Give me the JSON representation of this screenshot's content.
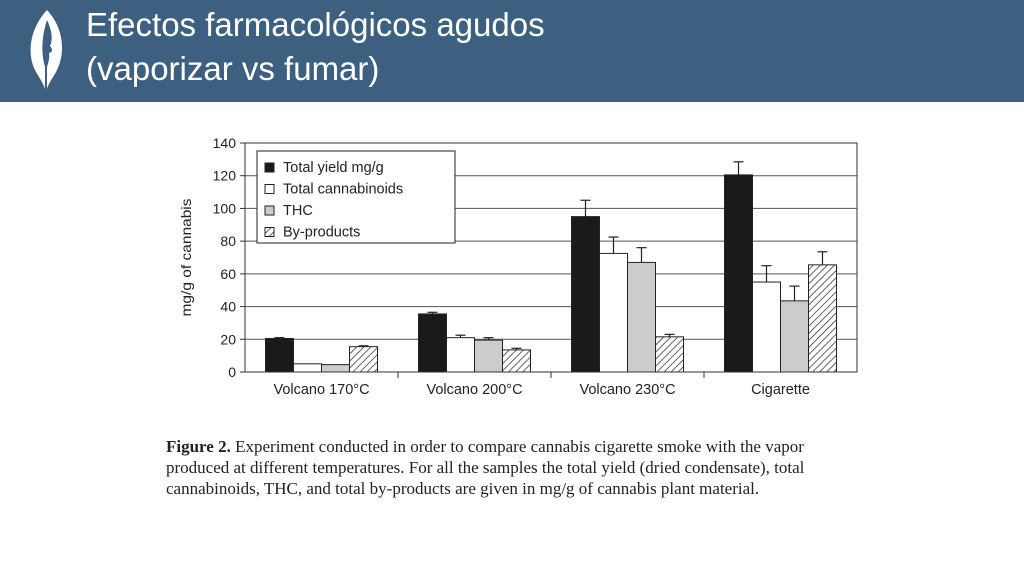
{
  "slide": {
    "title_line1": "Efectos farmacológicos agudos",
    "title_line2": "(vaporizar vs fumar)",
    "logo_icon": "leaf-profile-icon"
  },
  "caption": {
    "lead": "Figure 2.",
    "text": "Experiment conducted in order to compare cannabis cigarette smoke with the vapor produced at different temperatures. For all the samples the total yield (dried condensate), total cannabinoids, THC, and total by-products are given in mg/g of cannabis plant material."
  },
  "colors": {
    "header_bg": "#3d5f80",
    "total_yield": "#1a1a1a",
    "total_cannabinoids": "#ffffff",
    "thc": "#cccccc",
    "by_products": "hatched"
  },
  "chart_data": {
    "type": "bar",
    "title": "",
    "xlabel": "",
    "ylabel": "mg/g of cannabis",
    "ylim": [
      0,
      140
    ],
    "yticks": [
      0,
      20,
      40,
      60,
      80,
      100,
      120,
      140
    ],
    "grid": true,
    "legend_position": "top-left",
    "categories": [
      "Volcano 170°C",
      "Volcano 200°C",
      "Volcano 230°C",
      "Cigarette"
    ],
    "series": [
      {
        "name": "Total yield mg/g",
        "fill": "#1a1a1a",
        "values": [
          20.5,
          35.5,
          95,
          120.5
        ],
        "errors": [
          0.5,
          1,
          10,
          8
        ]
      },
      {
        "name": "Total cannabinoids",
        "fill": "#ffffff",
        "values": [
          5,
          21,
          72.5,
          55
        ],
        "errors": [
          0,
          1.5,
          10,
          10
        ]
      },
      {
        "name": "THC",
        "fill": "#cccccc",
        "values": [
          4.5,
          19.5,
          67,
          43.5
        ],
        "errors": [
          0,
          1.5,
          9,
          9
        ]
      },
      {
        "name": "By-products",
        "fill": "hatch",
        "values": [
          15.5,
          13.5,
          21.5,
          65.5
        ],
        "errors": [
          0.5,
          1,
          1.5,
          8
        ]
      }
    ]
  }
}
